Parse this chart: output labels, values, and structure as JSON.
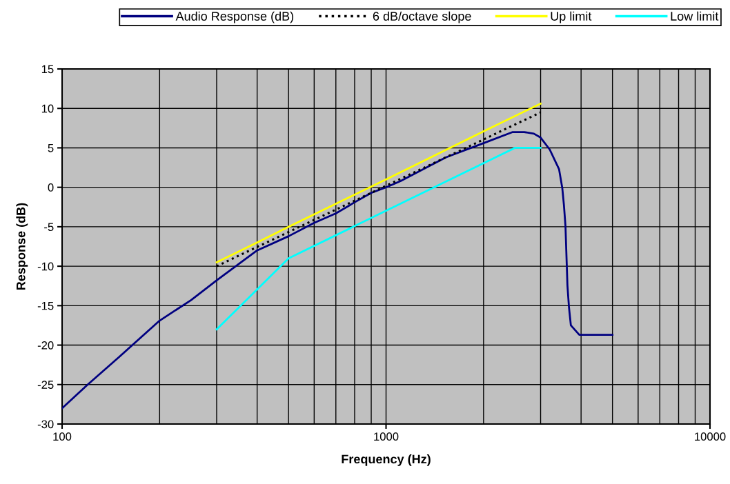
{
  "chart_data": {
    "type": "line",
    "xlabel": "Frequency (Hz)",
    "ylabel": "Response (dB)",
    "log": "x",
    "xlim": [
      100,
      10000
    ],
    "xticks": [
      100,
      1000,
      10000
    ],
    "ylim": [
      -30,
      15
    ],
    "yticks": [
      -30,
      -25,
      -20,
      -15,
      -10,
      -5,
      0,
      5,
      10,
      15
    ],
    "grid": true,
    "legend": "top",
    "marker": "none",
    "series": [
      {
        "name": "Audio Response (dB)",
        "color": "#000080",
        "line_style": "solid",
        "x": [
          100,
          120,
          150,
          200,
          250,
          300,
          400,
          500,
          600,
          700,
          800,
          900,
          1000,
          1110,
          1530,
          2000,
          2460,
          2670,
          2860,
          3000,
          3200,
          3420,
          3500,
          3540,
          3580,
          3630,
          3670,
          3720,
          3950,
          5000
        ],
        "values": [
          -28,
          -25,
          -21.5,
          -16.9,
          -14.3,
          -11.8,
          -8.0,
          -6.2,
          -4.5,
          -3.3,
          -1.9,
          -0.7,
          0,
          0.8,
          3.8,
          5.6,
          7.0,
          7.0,
          6.8,
          6.3,
          4.8,
          2.3,
          -0.1,
          -2.2,
          -4.9,
          -12.4,
          -15.2,
          -17.5,
          -18.7,
          -18.7
        ]
      },
      {
        "name": "6 dB/octave slope",
        "color": "#000000",
        "line_style": "dotted",
        "x": [
          300,
          3000
        ],
        "values": [
          -10,
          9.5
        ]
      },
      {
        "name": "Up limit",
        "color": "#ffff00",
        "line_style": "solid",
        "x": [
          300,
          400,
          500,
          1000,
          2000,
          3000
        ],
        "values": [
          -9.5,
          -7.0,
          -5.0,
          1.0,
          7.1,
          10.6
        ]
      },
      {
        "name": "Low limit",
        "color": "#00ffff",
        "line_style": "solid",
        "x": [
          300,
          500,
          2500,
          3000
        ],
        "values": [
          -18,
          -9,
          5,
          5
        ]
      }
    ]
  }
}
